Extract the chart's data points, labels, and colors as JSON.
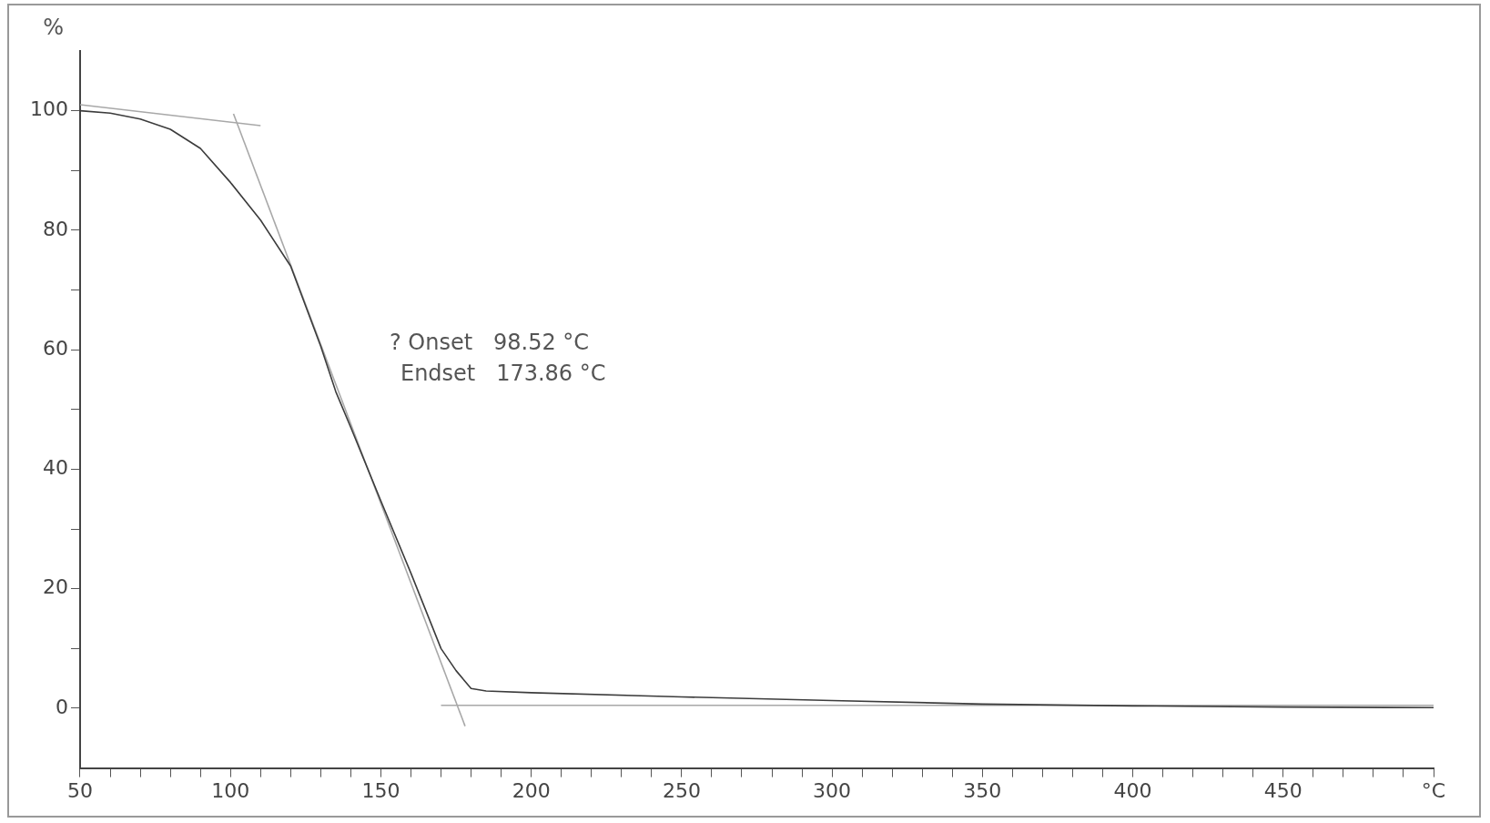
{
  "chart_data": {
    "type": "line",
    "ylabel": "%",
    "xlim": [
      50,
      500
    ],
    "ylim": [
      -10,
      110
    ],
    "xticks": [
      50,
      {
        "value": 60,
        "label": null
      },
      {
        "value": 70,
        "label": null
      },
      {
        "value": 80,
        "label": null
      },
      {
        "value": 90,
        "label": null
      },
      100,
      {
        "value": 110,
        "label": null
      },
      {
        "value": 120,
        "label": null
      },
      {
        "value": 130,
        "label": null
      },
      {
        "value": 140,
        "label": null
      },
      150,
      {
        "value": 160,
        "label": null
      },
      {
        "value": 170,
        "label": null
      },
      {
        "value": 180,
        "label": null
      },
      {
        "value": 190,
        "label": null
      },
      200,
      {
        "value": 210,
        "label": null
      },
      {
        "value": 220,
        "label": null
      },
      {
        "value": 230,
        "label": null
      },
      {
        "value": 240,
        "label": null
      },
      250,
      {
        "value": 260,
        "label": null
      },
      {
        "value": 270,
        "label": null
      },
      {
        "value": 280,
        "label": null
      },
      {
        "value": 290,
        "label": null
      },
      300,
      {
        "value": 310,
        "label": null
      },
      {
        "value": 320,
        "label": null
      },
      {
        "value": 330,
        "label": null
      },
      {
        "value": 340,
        "label": null
      },
      350,
      {
        "value": 360,
        "label": null
      },
      {
        "value": 370,
        "label": null
      },
      {
        "value": 380,
        "label": null
      },
      {
        "value": 390,
        "label": null
      },
      400,
      {
        "value": 410,
        "label": null
      },
      {
        "value": 420,
        "label": null
      },
      {
        "value": 430,
        "label": null
      },
      {
        "value": 440,
        "label": null
      },
      450,
      {
        "value": 460,
        "label": null
      },
      {
        "value": 470,
        "label": null
      },
      {
        "value": 480,
        "label": null
      },
      {
        "value": 490,
        "label": null
      },
      {
        "value": 500,
        "label": "°C"
      }
    ],
    "yticks": [
      0,
      {
        "value": 10,
        "label": null
      },
      20,
      {
        "value": 30,
        "label": null
      },
      40,
      {
        "value": 50,
        "label": null
      },
      60,
      {
        "value": 70,
        "label": null
      },
      80,
      {
        "value": 90,
        "label": null
      },
      100
    ],
    "grid": false,
    "legend": false,
    "marker": "none",
    "line_style": "solid",
    "series": [
      {
        "color": "#3c3c3c",
        "x": [
          50,
          60,
          70,
          80,
          90,
          100,
          110,
          120,
          130,
          135,
          140,
          150,
          160,
          170,
          175,
          180,
          185,
          200,
          250,
          300,
          350,
          400,
          450,
          500
        ],
        "values": [
          100,
          99.6,
          98.6,
          96.9,
          93.7,
          88,
          81.7,
          74,
          60.6,
          53,
          47,
          34.7,
          22.6,
          10,
          6.3,
          3.3,
          2.9,
          2.6,
          1.9,
          1.3,
          0.7,
          0.4,
          0.2,
          0.1
        ]
      },
      {
        "color": "#a8a8a8",
        "x": [
          50,
          110
        ],
        "values": [
          101,
          97.5
        ]
      },
      {
        "color": "#a8a8a8",
        "x": [
          101,
          178
        ],
        "values": [
          99.5,
          -3
        ]
      },
      {
        "color": "#a8a8a8",
        "x": [
          170,
          500
        ],
        "values": [
          0.5,
          0.5
        ]
      }
    ],
    "annotations": [
      "? Onset   98.52 °C",
      "Endset   173.86 °C"
    ]
  }
}
